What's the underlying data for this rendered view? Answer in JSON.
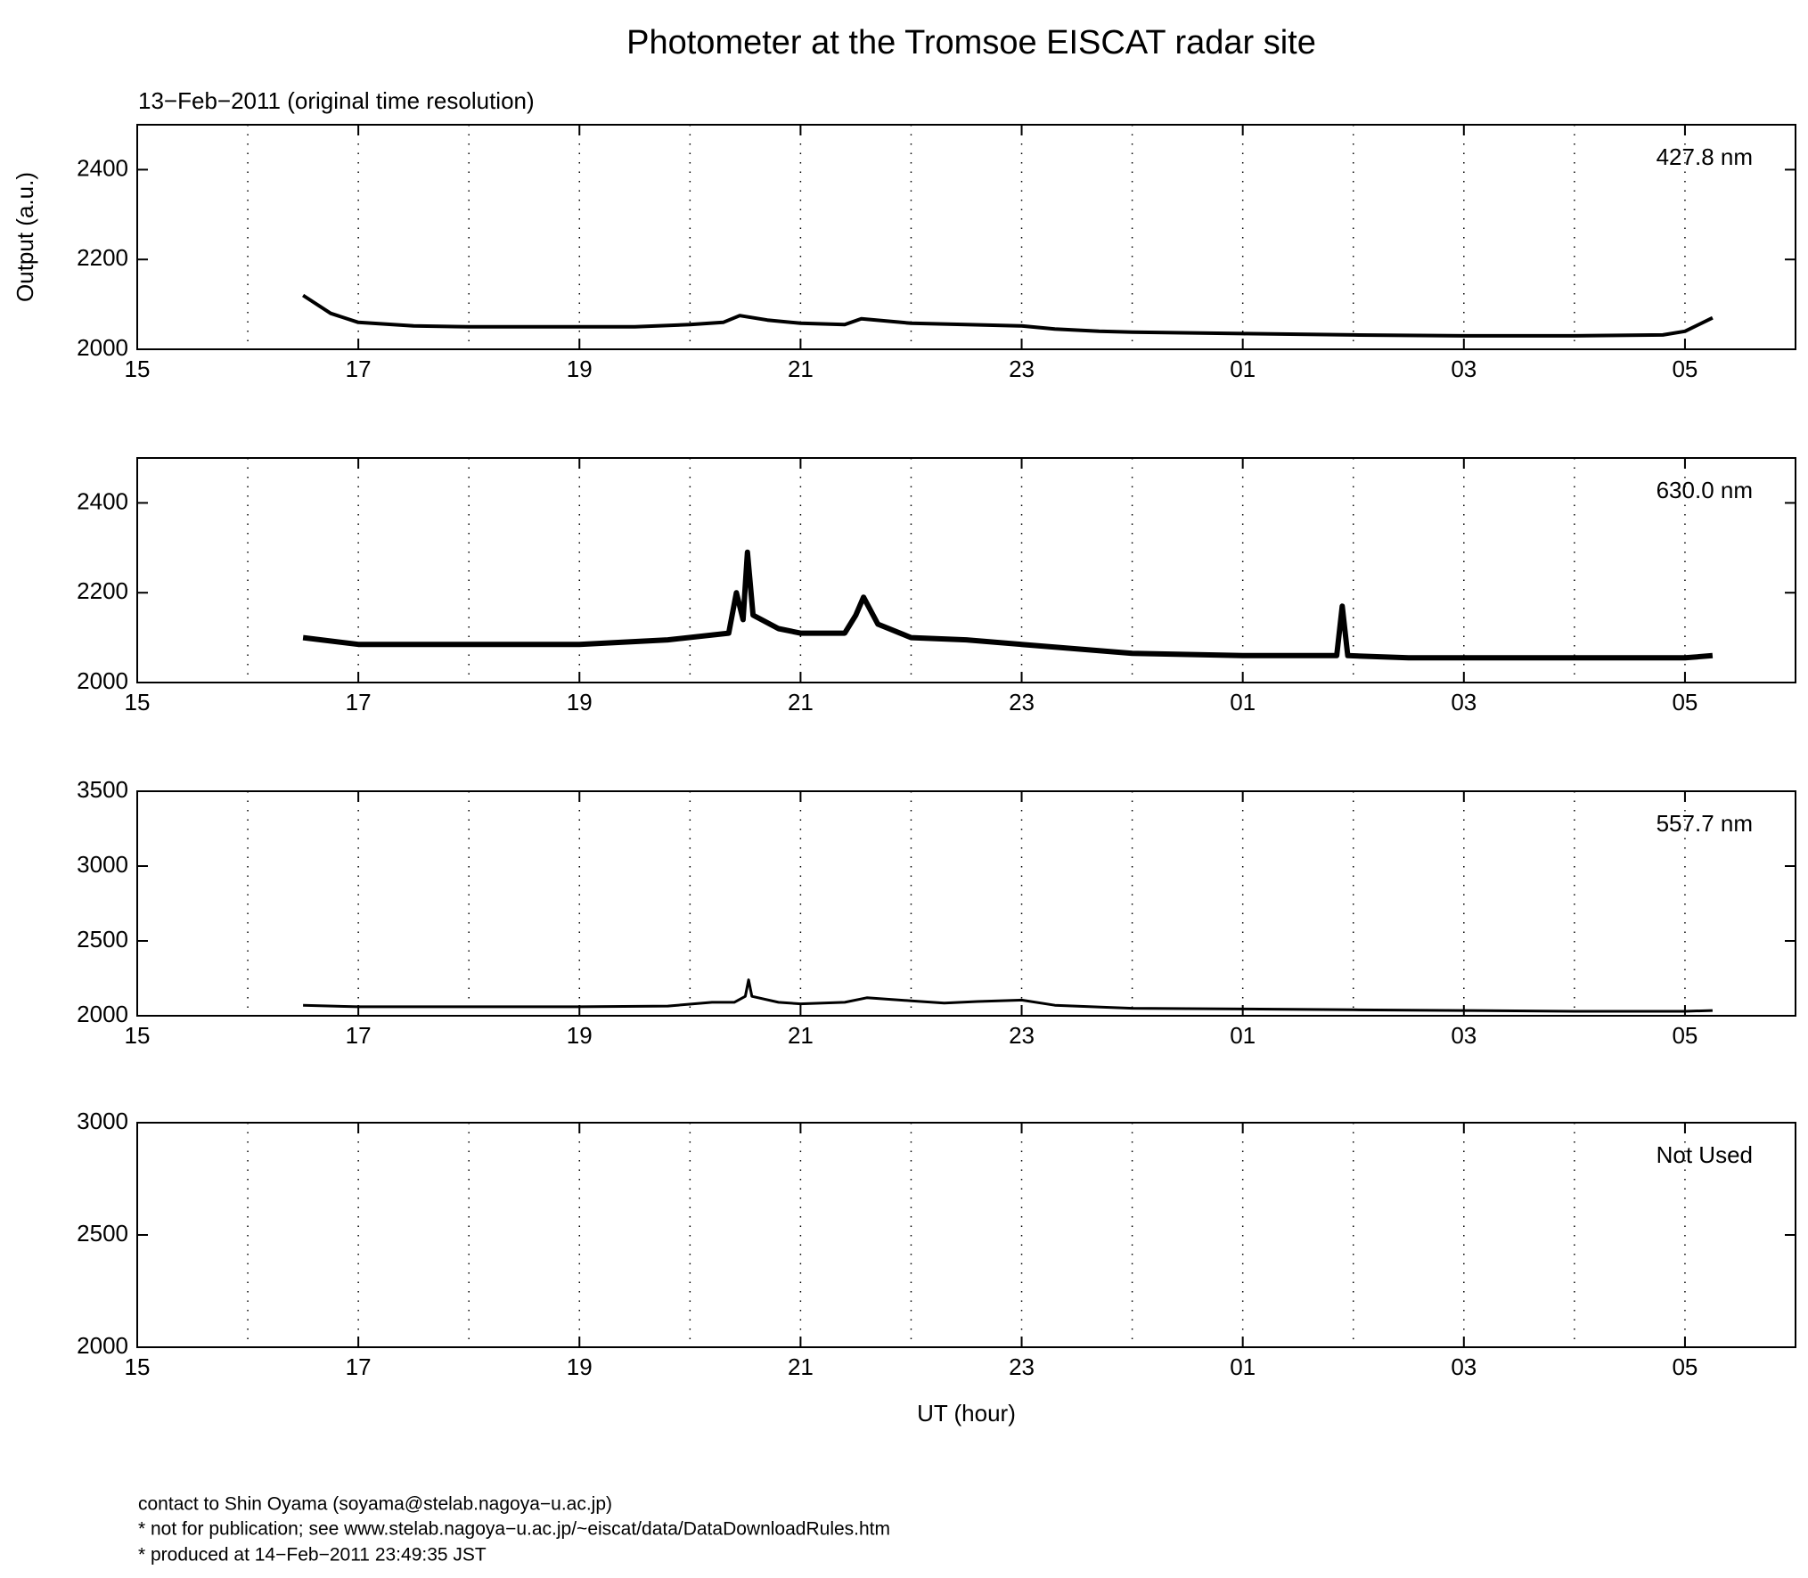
{
  "title": "Photometer at the Tromsoe EISCAT radar site",
  "subtitle": "13−Feb−2011 (original time resolution)",
  "footer": [
    "contact to Shin Oyama (soyama@stelab.nagoya−u.ac.jp)",
    "* not for publication; see www.stelab.nagoya−u.ac.jp/~eiscat/data/DataDownloadRules.htm",
    "* produced at 14−Feb−2011 23:49:35 JST"
  ],
  "chart_data": [
    {
      "type": "line",
      "label": "427.8 nm",
      "ylabel": "Output (a.u.)",
      "color": "#000000",
      "xlim": [
        15,
        30
      ],
      "xticks": [
        15,
        17,
        19,
        21,
        23,
        {
          "value": 25,
          "label": "01"
        },
        {
          "value": 27,
          "label": "03"
        },
        {
          "value": 29,
          "label": "05"
        }
      ],
      "xgrid": [
        16,
        17,
        18,
        19,
        20,
        21,
        22,
        23,
        24,
        25,
        26,
        27,
        28,
        29
      ],
      "ylim": [
        2000,
        2500
      ],
      "yticks": [
        2000,
        2200,
        2400
      ],
      "x": [
        16.5,
        16.75,
        17,
        17.5,
        18,
        18.5,
        19,
        19.5,
        20,
        20.3,
        20.45,
        20.7,
        21,
        21.4,
        21.55,
        22,
        22.5,
        23,
        23.3,
        23.7,
        24,
        25,
        26,
        27,
        28,
        28.8,
        29,
        29.25
      ],
      "values": [
        2120,
        2080,
        2060,
        2052,
        2050,
        2050,
        2050,
        2050,
        2055,
        2060,
        2075,
        2065,
        2058,
        2055,
        2068,
        2058,
        2055,
        2052,
        2045,
        2040,
        2038,
        2035,
        2032,
        2030,
        2030,
        2032,
        2040,
        2070
      ]
    },
    {
      "type": "line",
      "label": "630.0 nm",
      "color": "#000000",
      "xlim": [
        15,
        30
      ],
      "xticks": [
        15,
        17,
        19,
        21,
        23,
        {
          "value": 25,
          "label": "01"
        },
        {
          "value": 27,
          "label": "03"
        },
        {
          "value": 29,
          "label": "05"
        }
      ],
      "xgrid": [
        16,
        17,
        18,
        19,
        20,
        21,
        22,
        23,
        24,
        25,
        26,
        27,
        28,
        29
      ],
      "ylim": [
        2000,
        2500
      ],
      "yticks": [
        2000,
        2200,
        2400
      ],
      "x": [
        16.5,
        17,
        18,
        19,
        19.8,
        20.35,
        20.42,
        20.48,
        20.52,
        20.57,
        20.8,
        21,
        21.4,
        21.5,
        21.57,
        21.7,
        22,
        22.5,
        23,
        23.5,
        24,
        25,
        25.85,
        25.9,
        25.95,
        26.5,
        27,
        28,
        29,
        29.25
      ],
      "values": [
        2100,
        2085,
        2085,
        2085,
        2095,
        2110,
        2200,
        2140,
        2290,
        2150,
        2120,
        2110,
        2110,
        2150,
        2190,
        2130,
        2100,
        2095,
        2085,
        2075,
        2065,
        2060,
        2060,
        2170,
        2060,
        2055,
        2055,
        2055,
        2055,
        2060
      ]
    },
    {
      "type": "line",
      "label": "557.7 nm",
      "color": "#000000",
      "xlim": [
        15,
        30
      ],
      "xticks": [
        15,
        17,
        19,
        21,
        23,
        {
          "value": 25,
          "label": "01"
        },
        {
          "value": 27,
          "label": "03"
        },
        {
          "value": 29,
          "label": "05"
        }
      ],
      "xgrid": [
        16,
        17,
        18,
        19,
        20,
        21,
        22,
        23,
        24,
        25,
        26,
        27,
        28,
        29
      ],
      "ylim": [
        2000,
        3500
      ],
      "yticks": [
        2000,
        2500,
        3000,
        3500
      ],
      "x": [
        16.5,
        17,
        18,
        19,
        19.8,
        20.2,
        20.4,
        20.5,
        20.53,
        20.56,
        20.8,
        21,
        21.4,
        21.6,
        22,
        22.3,
        22.6,
        23,
        23.3,
        24,
        25,
        26,
        27,
        28,
        29,
        29.25
      ],
      "values": [
        2070,
        2060,
        2060,
        2060,
        2065,
        2090,
        2090,
        2130,
        2240,
        2130,
        2090,
        2080,
        2090,
        2120,
        2100,
        2085,
        2095,
        2105,
        2070,
        2050,
        2045,
        2040,
        2035,
        2030,
        2030,
        2035
      ]
    },
    {
      "type": "line",
      "label": "Not Used",
      "xlabel": "UT (hour)",
      "color": "#000000",
      "xlim": [
        15,
        30
      ],
      "xticks": [
        15,
        17,
        19,
        21,
        23,
        {
          "value": 25,
          "label": "01"
        },
        {
          "value": 27,
          "label": "03"
        },
        {
          "value": 29,
          "label": "05"
        }
      ],
      "xgrid": [
        16,
        17,
        18,
        19,
        20,
        21,
        22,
        23,
        24,
        25,
        26,
        27,
        28,
        29
      ],
      "ylim": [
        2000,
        3000
      ],
      "yticks": [
        2000,
        2500,
        3000
      ]
    }
  ]
}
